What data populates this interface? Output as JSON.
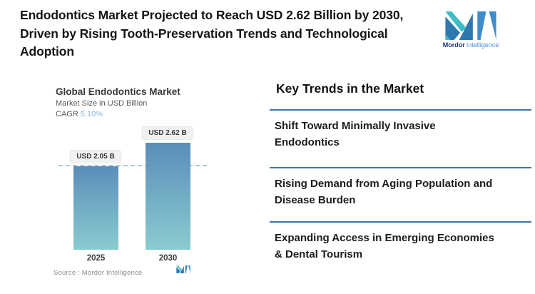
{
  "header": {
    "title_lines": [
      "Endodontics Market Projected to Reach USD 2.62 Billion by 2030,",
      "Driven by Rising Tooth-Preservation Trends and Technological",
      "Adoption"
    ]
  },
  "brand": {
    "name_primary": "Mordor",
    "name_secondary": "Intelligence",
    "colors": {
      "dark_blue": "#2e78b0",
      "light_blue": "#3e8dca",
      "teal": "#3fbcc6",
      "text_dark": "#1d3a75",
      "text_light": "#4b8fd5"
    }
  },
  "chart": {
    "title": "Global Endodontics Market",
    "subtitle": "Market Size in USD Billion",
    "cagr_label": "CAGR",
    "cagr_value": "5.10%",
    "source": "Source : Mordor Intelligence"
  },
  "chart_data": {
    "type": "bar",
    "categories": [
      "2025",
      "2030"
    ],
    "values": [
      2.05,
      2.62
    ],
    "value_labels": [
      "USD 2.05 B",
      "USD 2.62 B"
    ],
    "title": "Global Endodontics Market",
    "ylabel": "Market Size in USD Billion",
    "cagr": "5.10%",
    "ylim": [
      0,
      2.62
    ],
    "reference_line": 2.05,
    "grid": false,
    "legend": "none",
    "bar_gradient_top": "#5b8db9",
    "bar_gradient_bottom": "#8acbd0",
    "reference_line_color": "#aac7db"
  },
  "trends": {
    "heading": "Key Trends in the Market",
    "divider_color": "#3d79a6",
    "items": [
      {
        "lines": [
          "Shift Toward Minimally Invasive",
          "Endodontics"
        ]
      },
      {
        "lines": [
          "Rising Demand from Aging Population and",
          "Disease Burden"
        ]
      },
      {
        "lines": [
          "Expanding Access in Emerging Economies",
          "& Dental Tourism"
        ]
      }
    ]
  }
}
